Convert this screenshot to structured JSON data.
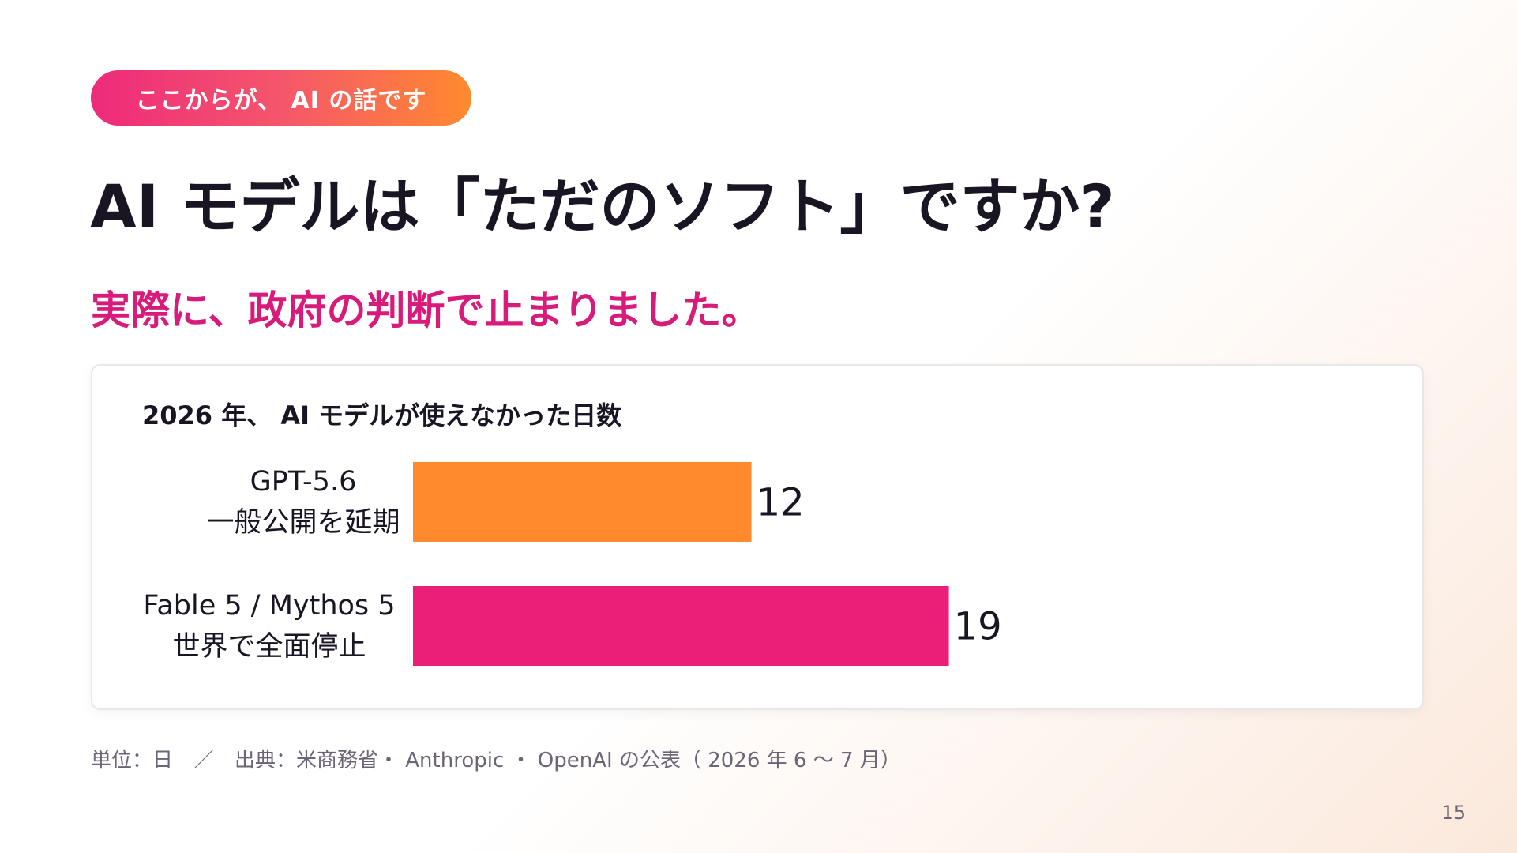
{
  "badge": {
    "text": "ここからが、 AI の話です"
  },
  "title": "AI モデルは「ただのソフト」ですか?",
  "subtitle": "実際に、政府の判断で止まりました。",
  "chart_data": {
    "type": "bar",
    "orientation": "horizontal",
    "title": "2026 年、 AI モデルが使えなかった日数",
    "categories": [
      {
        "line1": "GPT-5.6",
        "line2": "一般公開を延期"
      },
      {
        "line1": "Fable 5 / Mythos 5",
        "line2": "世界で全面停止"
      }
    ],
    "values": [
      12,
      19
    ],
    "value_labels": [
      "12",
      "19"
    ],
    "colors": [
      "#ff8a2e",
      "#ec1f78"
    ],
    "xlim": [
      0,
      28
    ],
    "grid": false,
    "legend": "none"
  },
  "footnote": "単位：日　／　出典：米商務省・ Anthropic ・ OpenAI  の公表（ 2026 年 6 〜 7 月）",
  "page_number": "15"
}
